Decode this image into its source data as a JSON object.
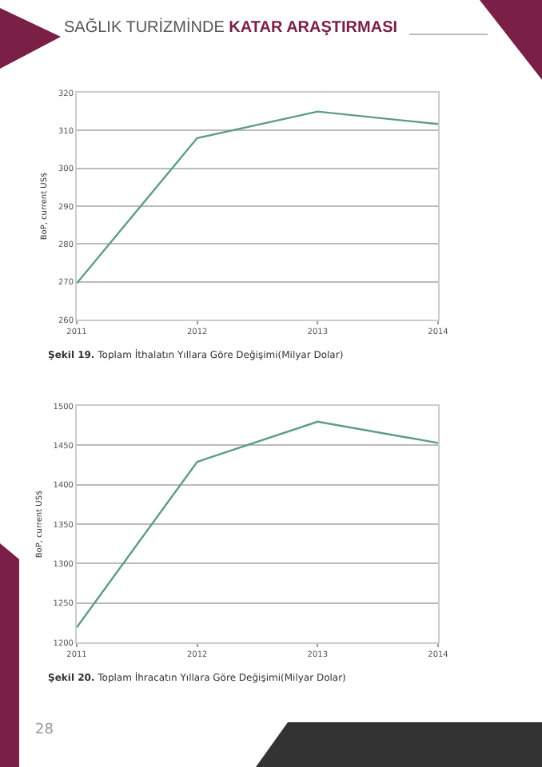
{
  "chart_data": [
    {
      "type": "line",
      "title": "SAĞLIK TURİZMİNDE KATAR ARAŞTIRMASI",
      "ylabel": "BoP, current US$",
      "x": [
        2011,
        2012,
        2013,
        2014
      ],
      "xlim": [
        2011,
        2014
      ],
      "xticks": [
        2011,
        2012,
        2013,
        2014
      ],
      "ylim": [
        260,
        320
      ],
      "yticks": [
        260,
        270,
        280,
        290,
        300,
        310,
        320
      ],
      "grid": "y",
      "marker": "none",
      "line_style": "solid",
      "series": [
        {
          "color": "#5e9c86",
          "values": [
            269.6,
            308,
            315,
            311.7
          ]
        }
      ],
      "annotations": [
        "Şekil 19. Toplam İthalatın Yıllara Göre Değişimi(Milyar Dolar)"
      ]
    },
    {
      "type": "line",
      "ylabel": "BoP, current US$",
      "x": [
        2011,
        2012,
        2013,
        2014
      ],
      "xlim": [
        2011,
        2014
      ],
      "xticks": [
        2011,
        2012,
        2013,
        2014
      ],
      "ylim": [
        1200,
        1500
      ],
      "yticks": [
        1200,
        1250,
        1300,
        1350,
        1400,
        1450,
        1500
      ],
      "grid": "y",
      "marker": "none",
      "line_style": "solid",
      "series": [
        {
          "color": "#5e9c86",
          "values": [
            1219,
            1429,
            1480,
            1453
          ]
        }
      ],
      "annotations": [
        "Şekil 20. Toplam İhracatın Yıllara Göre Değişimi(Milyar Dolar)",
        "28"
      ]
    }
  ]
}
